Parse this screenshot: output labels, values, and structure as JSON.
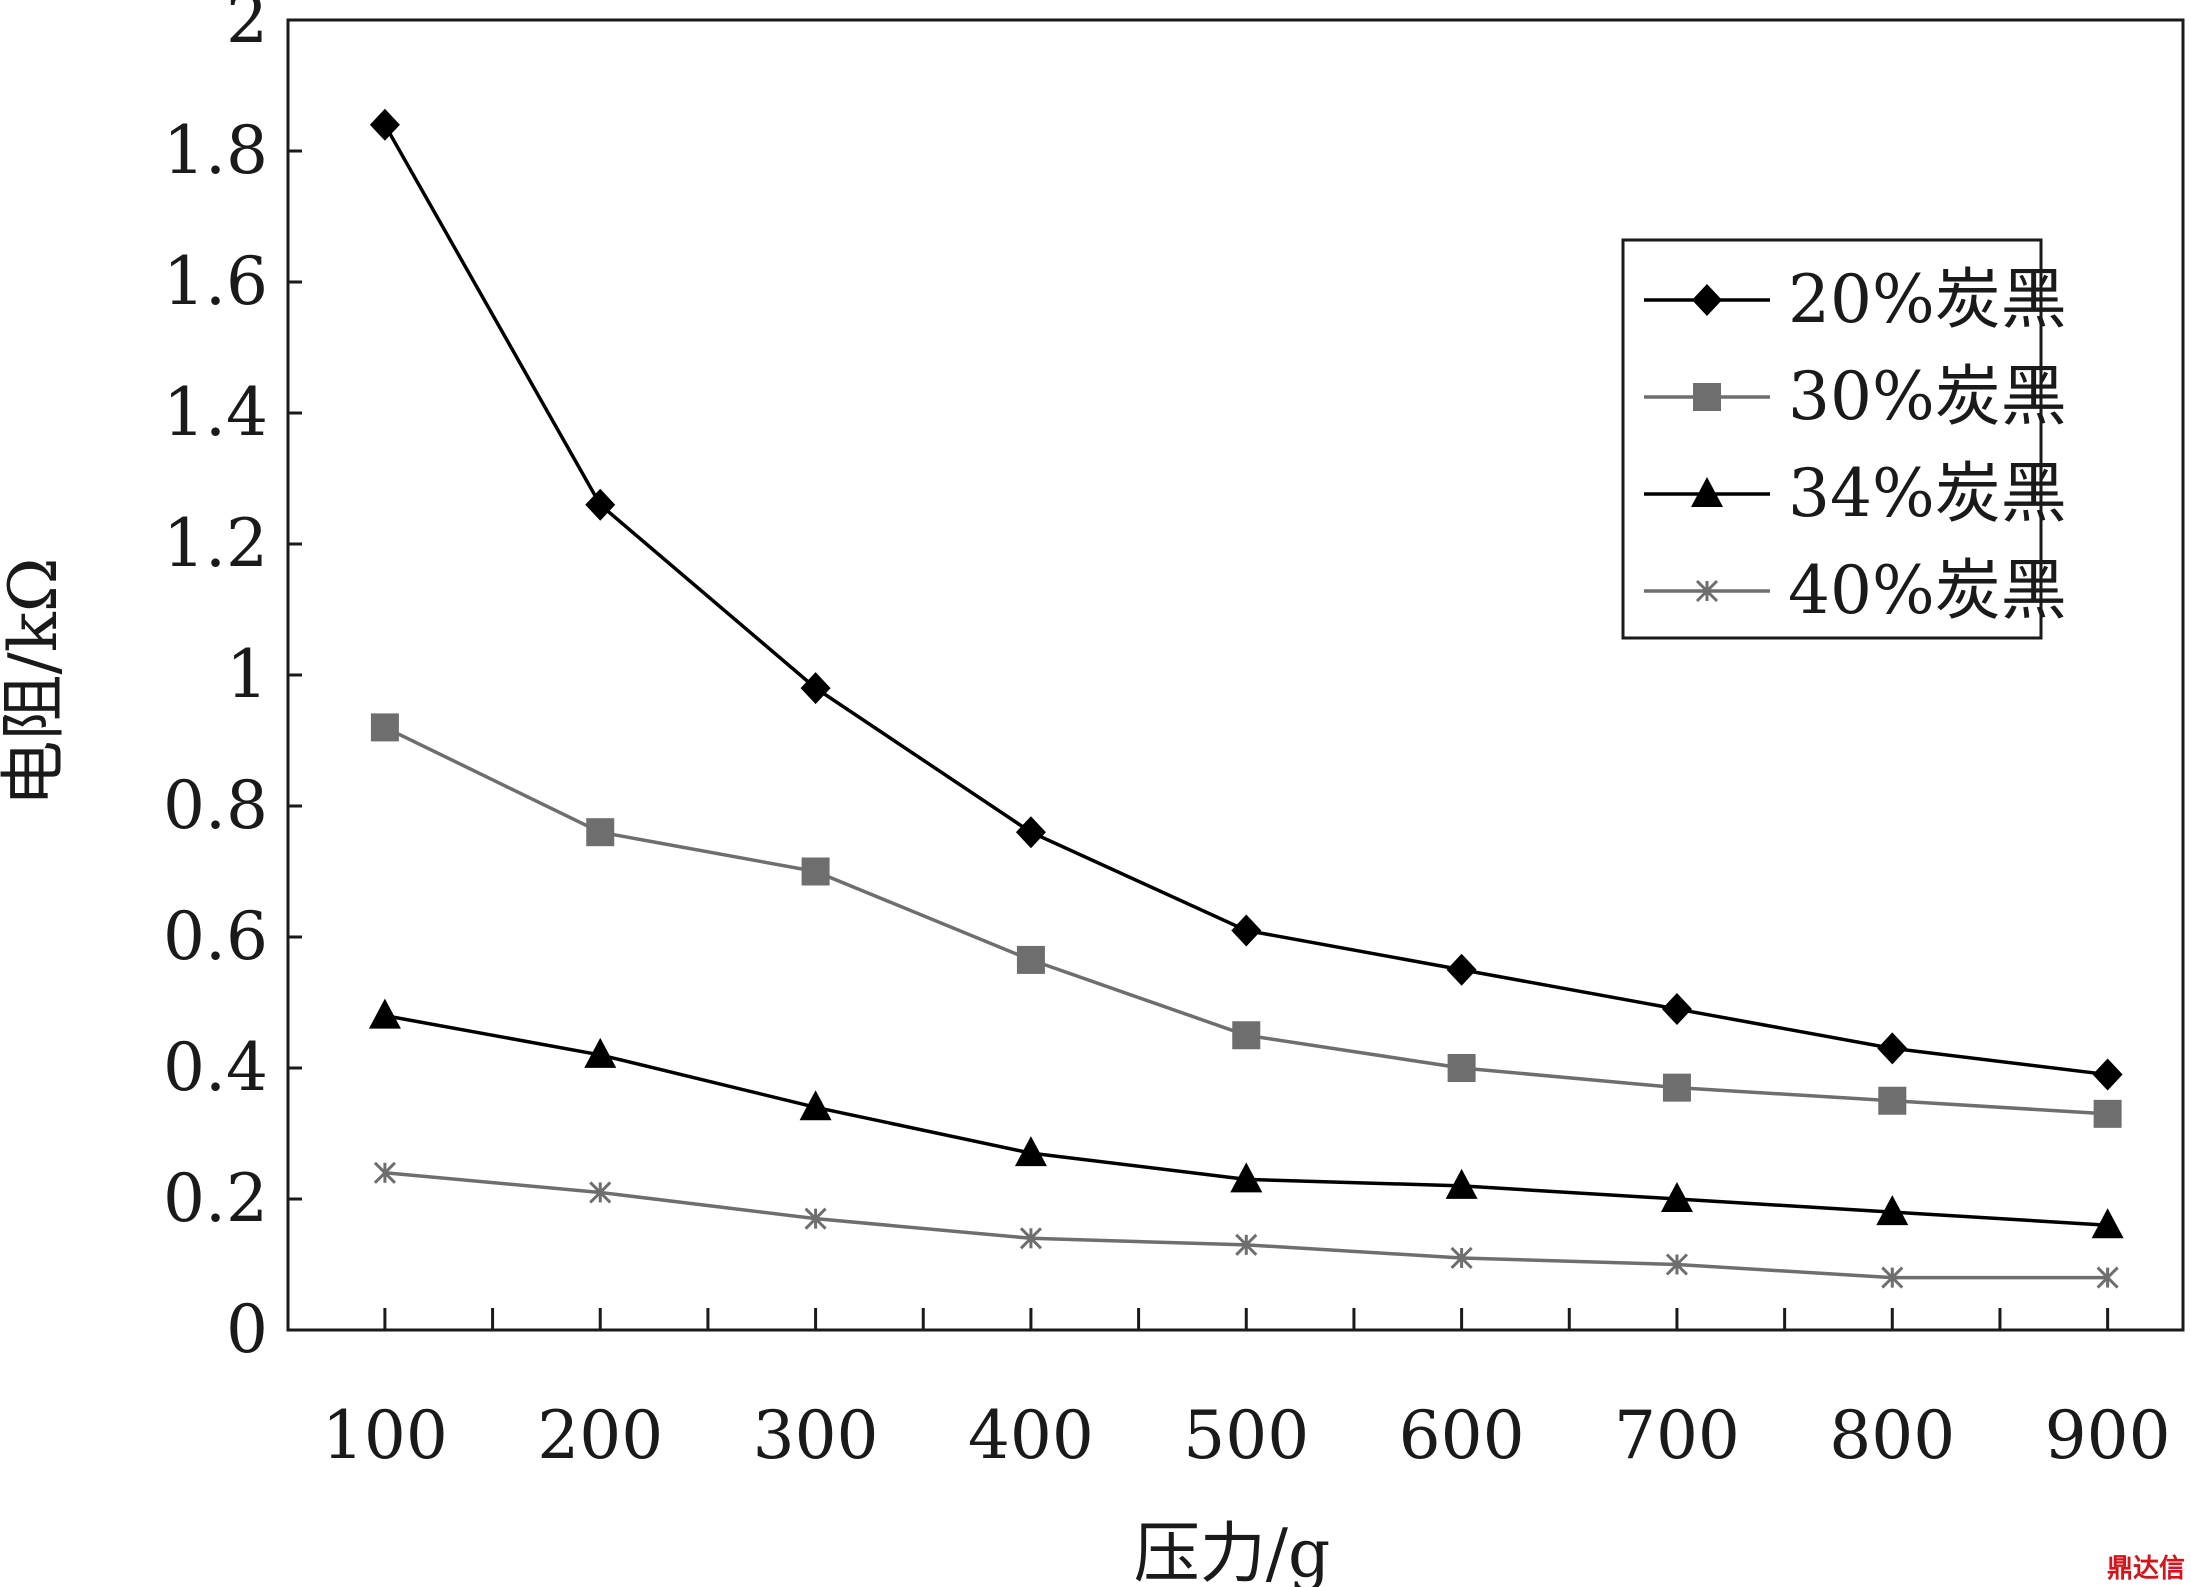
{
  "watermark": "鼎达信",
  "chart_data": {
    "type": "line",
    "xlabel": "压力/g",
    "ylabel": "电阻/kΩ",
    "x": [
      100,
      200,
      300,
      400,
      500,
      600,
      700,
      800,
      900
    ],
    "xlim": [
      55,
      935
    ],
    "ylim": [
      0,
      2
    ],
    "yticks": [
      "0",
      "0.2",
      "0.4",
      "0.6",
      "0.8",
      "1",
      "1.2",
      "1.4",
      "1.6",
      "1.8",
      "2"
    ],
    "xticks": [
      "100",
      "200",
      "300",
      "400",
      "500",
      "600",
      "700",
      "800",
      "900"
    ],
    "grid": false,
    "legend_position": "top-right",
    "series": [
      {
        "name": "20%炭黑",
        "marker": "diamond",
        "color": "#000000",
        "values": [
          1.84,
          1.26,
          0.98,
          0.76,
          0.61,
          0.55,
          0.49,
          0.43,
          0.39
        ]
      },
      {
        "name": "30%炭黑",
        "marker": "square",
        "color": "#6e6e6e",
        "values": [
          0.92,
          0.76,
          0.7,
          0.565,
          0.45,
          0.4,
          0.37,
          0.35,
          0.33
        ]
      },
      {
        "name": "34%炭黑",
        "marker": "triangle",
        "color": "#000000",
        "values": [
          0.48,
          0.42,
          0.34,
          0.27,
          0.23,
          0.22,
          0.2,
          0.18,
          0.16
        ]
      },
      {
        "name": "40%炭黑",
        "marker": "star",
        "color": "#6e6e6e",
        "values": [
          0.24,
          0.21,
          0.17,
          0.14,
          0.13,
          0.11,
          0.1,
          0.08,
          0.08
        ]
      }
    ]
  }
}
